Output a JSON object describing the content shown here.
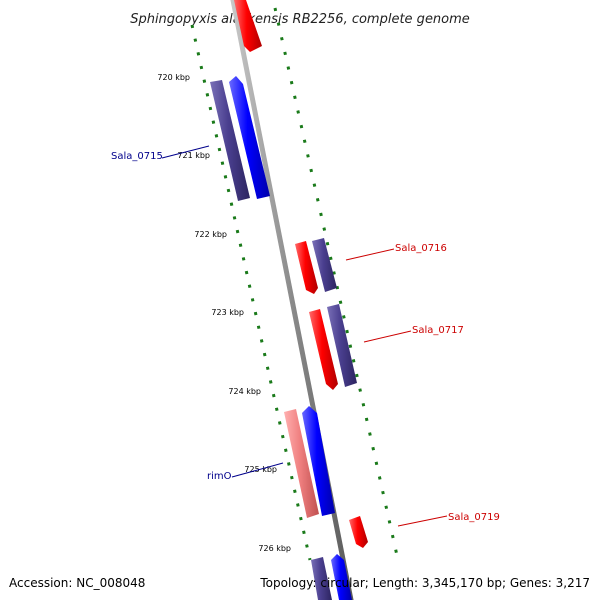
{
  "map": {
    "title": "Sphingopyxis alaskensis RB2256, complete genome",
    "ticks": [
      {
        "label": "720 kbp"
      },
      {
        "label": "721 kbp"
      },
      {
        "label": "722 kbp"
      },
      {
        "label": "723 kbp"
      },
      {
        "label": "724 kbp"
      },
      {
        "label": "725 kbp"
      },
      {
        "label": "726 kbp"
      }
    ],
    "gene_labels": [
      {
        "name": "Sala_0715",
        "color": "#00008b"
      },
      {
        "name": "Sala_0716",
        "color": "#cc0000"
      },
      {
        "name": "Sala_0717",
        "color": "#cc0000"
      },
      {
        "name": "rimO",
        "color": "#00008b"
      },
      {
        "name": "Sala_0719",
        "color": "#cc0000"
      }
    ],
    "colors": {
      "backbone": "#8a8a8a",
      "gene_forward": "#0000ee",
      "gene_reverse": "#ee0000",
      "gene_dark": "#4a3f8f",
      "gene_light_red": "#f08080",
      "tick_marks": "#1a7a1a"
    }
  },
  "footer": {
    "accession": "Accession: NC_008048",
    "topology": "Topology: circular; Length: 3,345,170 bp; Genes: 3,217"
  }
}
